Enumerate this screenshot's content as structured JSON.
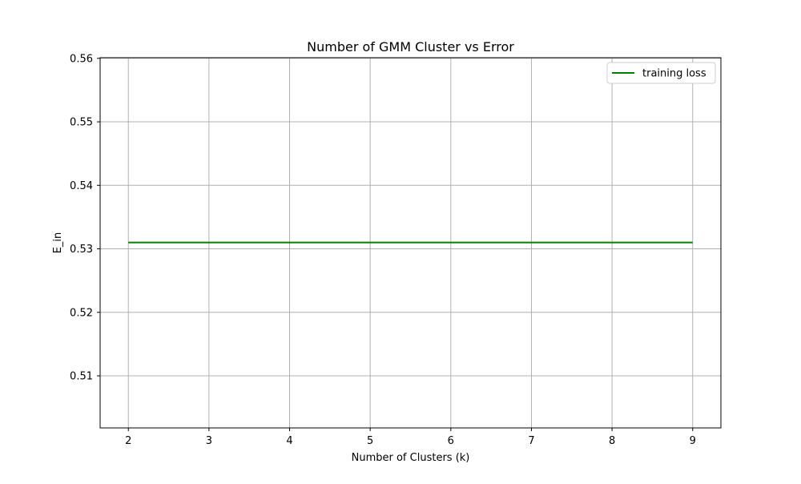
{
  "chart_data": {
    "type": "line",
    "title": "Number of GMM Cluster vs Error",
    "xlabel": "Number of Clusters (k)",
    "ylabel": "E_in",
    "x": [
      2,
      3,
      4,
      5,
      6,
      7,
      8,
      9
    ],
    "series": [
      {
        "name": "training loss",
        "values": [
          0.531,
          0.531,
          0.531,
          0.531,
          0.531,
          0.531,
          0.531,
          0.531
        ],
        "color": "#008000"
      }
    ],
    "xticks": [
      2,
      3,
      4,
      5,
      6,
      7,
      8,
      9
    ],
    "xtick_labels": [
      "2",
      "3",
      "4",
      "5",
      "6",
      "7",
      "8",
      "9"
    ],
    "yticks": [
      0.51,
      0.52,
      0.53,
      0.54,
      0.55,
      0.56
    ],
    "ytick_labels": [
      "0.51",
      "0.52",
      "0.53",
      "0.54",
      "0.55",
      "0.56"
    ],
    "xlim": [
      1.65,
      9.35
    ],
    "ylim": [
      0.5018,
      0.5601
    ],
    "grid": true,
    "legend_position": "top-right"
  }
}
